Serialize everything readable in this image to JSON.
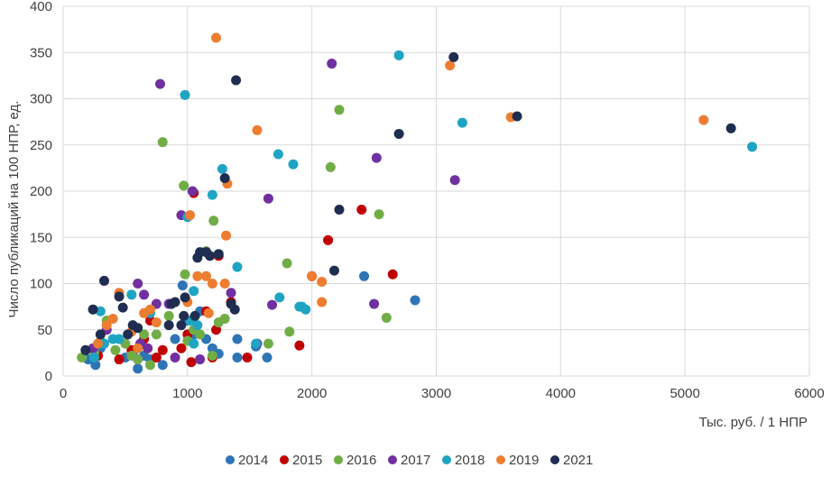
{
  "chart_data": {
    "type": "scatter",
    "title": "",
    "xlabel": "Тыс. руб. / 1 НПР",
    "ylabel": "Число публикаций на 100 НПР, ед.",
    "xlim": [
      0,
      6000
    ],
    "ylim": [
      0,
      400
    ],
    "xticks": [
      0,
      1000,
      2000,
      3000,
      4000,
      5000,
      6000
    ],
    "yticks": [
      0,
      50,
      100,
      150,
      200,
      250,
      300,
      350,
      400
    ],
    "grid": true,
    "legend_position": "bottom",
    "series": [
      {
        "name": "2014",
        "color": "#2e75b6",
        "points": [
          [
            200,
            18
          ],
          [
            260,
            12
          ],
          [
            300,
            30
          ],
          [
            500,
            20
          ],
          [
            560,
            25
          ],
          [
            600,
            8
          ],
          [
            650,
            22
          ],
          [
            700,
            18
          ],
          [
            800,
            12
          ],
          [
            900,
            40
          ],
          [
            960,
            98
          ],
          [
            1000,
            60
          ],
          [
            1050,
            45
          ],
          [
            1100,
            70
          ],
          [
            1150,
            40
          ],
          [
            1200,
            30
          ],
          [
            1250,
            24
          ],
          [
            1400,
            20
          ],
          [
            1400,
            40
          ],
          [
            1550,
            32
          ],
          [
            1640,
            20
          ],
          [
            2420,
            108
          ],
          [
            2830,
            82
          ]
        ]
      },
      {
        "name": "2015",
        "color": "#c00000",
        "points": [
          [
            280,
            22
          ],
          [
            450,
            18
          ],
          [
            550,
            28
          ],
          [
            650,
            40
          ],
          [
            700,
            60
          ],
          [
            750,
            20
          ],
          [
            800,
            28
          ],
          [
            950,
            30
          ],
          [
            1000,
            45
          ],
          [
            1030,
            15
          ],
          [
            1050,
            198
          ],
          [
            1150,
            70
          ],
          [
            1200,
            20
          ],
          [
            1230,
            50
          ],
          [
            1250,
            130
          ],
          [
            1350,
            80
          ],
          [
            1480,
            20
          ],
          [
            1900,
            33
          ],
          [
            2000,
            108
          ],
          [
            2130,
            147
          ],
          [
            2400,
            180
          ],
          [
            2650,
            110
          ]
        ]
      },
      {
        "name": "2016",
        "color": "#70ad47",
        "points": [
          [
            150,
            20
          ],
          [
            250,
            25
          ],
          [
            300,
            38
          ],
          [
            350,
            60
          ],
          [
            420,
            28
          ],
          [
            500,
            35
          ],
          [
            550,
            22
          ],
          [
            600,
            18
          ],
          [
            650,
            45
          ],
          [
            700,
            12
          ],
          [
            750,
            45
          ],
          [
            800,
            253
          ],
          [
            850,
            65
          ],
          [
            970,
            206
          ],
          [
            980,
            110
          ],
          [
            1000,
            38
          ],
          [
            1050,
            50
          ],
          [
            1100,
            45
          ],
          [
            1150,
            135
          ],
          [
            1200,
            22
          ],
          [
            1210,
            168
          ],
          [
            1250,
            58
          ],
          [
            1300,
            62
          ],
          [
            1650,
            35
          ],
          [
            1800,
            122
          ],
          [
            1820,
            48
          ],
          [
            2150,
            226
          ],
          [
            2220,
            288
          ],
          [
            2540,
            175
          ],
          [
            2600,
            63
          ]
        ]
      },
      {
        "name": "2017",
        "color": "#7030a0",
        "points": [
          [
            240,
            30
          ],
          [
            350,
            50
          ],
          [
            600,
            100
          ],
          [
            620,
            35
          ],
          [
            650,
            88
          ],
          [
            680,
            30
          ],
          [
            750,
            78
          ],
          [
            780,
            316
          ],
          [
            850,
            78
          ],
          [
            900,
            20
          ],
          [
            950,
            174
          ],
          [
            1040,
            200
          ],
          [
            1100,
            18
          ],
          [
            1350,
            90
          ],
          [
            1560,
            35
          ],
          [
            1650,
            192
          ],
          [
            1680,
            77
          ],
          [
            2160,
            338
          ],
          [
            2500,
            78
          ],
          [
            2520,
            236
          ],
          [
            3150,
            212
          ]
        ]
      },
      {
        "name": "2018",
        "color": "#1fa4c3",
        "points": [
          [
            250,
            20
          ],
          [
            300,
            70
          ],
          [
            330,
            35
          ],
          [
            400,
            40
          ],
          [
            450,
            40
          ],
          [
            550,
            88
          ],
          [
            700,
            68
          ],
          [
            980,
            304
          ],
          [
            1000,
            172
          ],
          [
            1020,
            60
          ],
          [
            1050,
            92
          ],
          [
            1050,
            35
          ],
          [
            1080,
            55
          ],
          [
            1200,
            196
          ],
          [
            1280,
            224
          ],
          [
            1400,
            118
          ],
          [
            1550,
            35
          ],
          [
            1730,
            240
          ],
          [
            1740,
            85
          ],
          [
            1850,
            229
          ],
          [
            1900,
            75
          ],
          [
            1920,
            75
          ],
          [
            1950,
            72
          ],
          [
            2700,
            347
          ],
          [
            3210,
            274
          ],
          [
            5540,
            248
          ]
        ]
      },
      {
        "name": "2019",
        "color": "#ed7d31",
        "points": [
          [
            280,
            35
          ],
          [
            350,
            55
          ],
          [
            400,
            62
          ],
          [
            450,
            90
          ],
          [
            550,
            48
          ],
          [
            600,
            30
          ],
          [
            650,
            68
          ],
          [
            700,
            72
          ],
          [
            750,
            58
          ],
          [
            1000,
            80
          ],
          [
            1020,
            174
          ],
          [
            1080,
            108
          ],
          [
            1150,
            108
          ],
          [
            1170,
            68
          ],
          [
            1200,
            100
          ],
          [
            1230,
            366
          ],
          [
            1300,
            100
          ],
          [
            1310,
            152
          ],
          [
            1320,
            208
          ],
          [
            1560,
            266
          ],
          [
            2000,
            108
          ],
          [
            2080,
            80
          ],
          [
            2080,
            102
          ],
          [
            3110,
            336
          ],
          [
            3600,
            280
          ],
          [
            5150,
            277
          ]
        ]
      },
      {
        "name": "2021",
        "color": "#1f2d50",
        "points": [
          [
            180,
            28
          ],
          [
            240,
            72
          ],
          [
            300,
            45
          ],
          [
            330,
            103
          ],
          [
            450,
            86
          ],
          [
            480,
            74
          ],
          [
            520,
            45
          ],
          [
            560,
            55
          ],
          [
            600,
            52
          ],
          [
            850,
            55
          ],
          [
            870,
            78
          ],
          [
            900,
            80
          ],
          [
            950,
            55
          ],
          [
            970,
            65
          ],
          [
            980,
            85
          ],
          [
            1060,
            65
          ],
          [
            1080,
            128
          ],
          [
            1100,
            134
          ],
          [
            1150,
            134
          ],
          [
            1180,
            130
          ],
          [
            1250,
            132
          ],
          [
            1300,
            214
          ],
          [
            1350,
            78
          ],
          [
            1380,
            72
          ],
          [
            1390,
            320
          ],
          [
            2180,
            114
          ],
          [
            2220,
            180
          ],
          [
            2700,
            262
          ],
          [
            3140,
            345
          ],
          [
            3650,
            281
          ],
          [
            5370,
            268
          ]
        ]
      }
    ]
  }
}
